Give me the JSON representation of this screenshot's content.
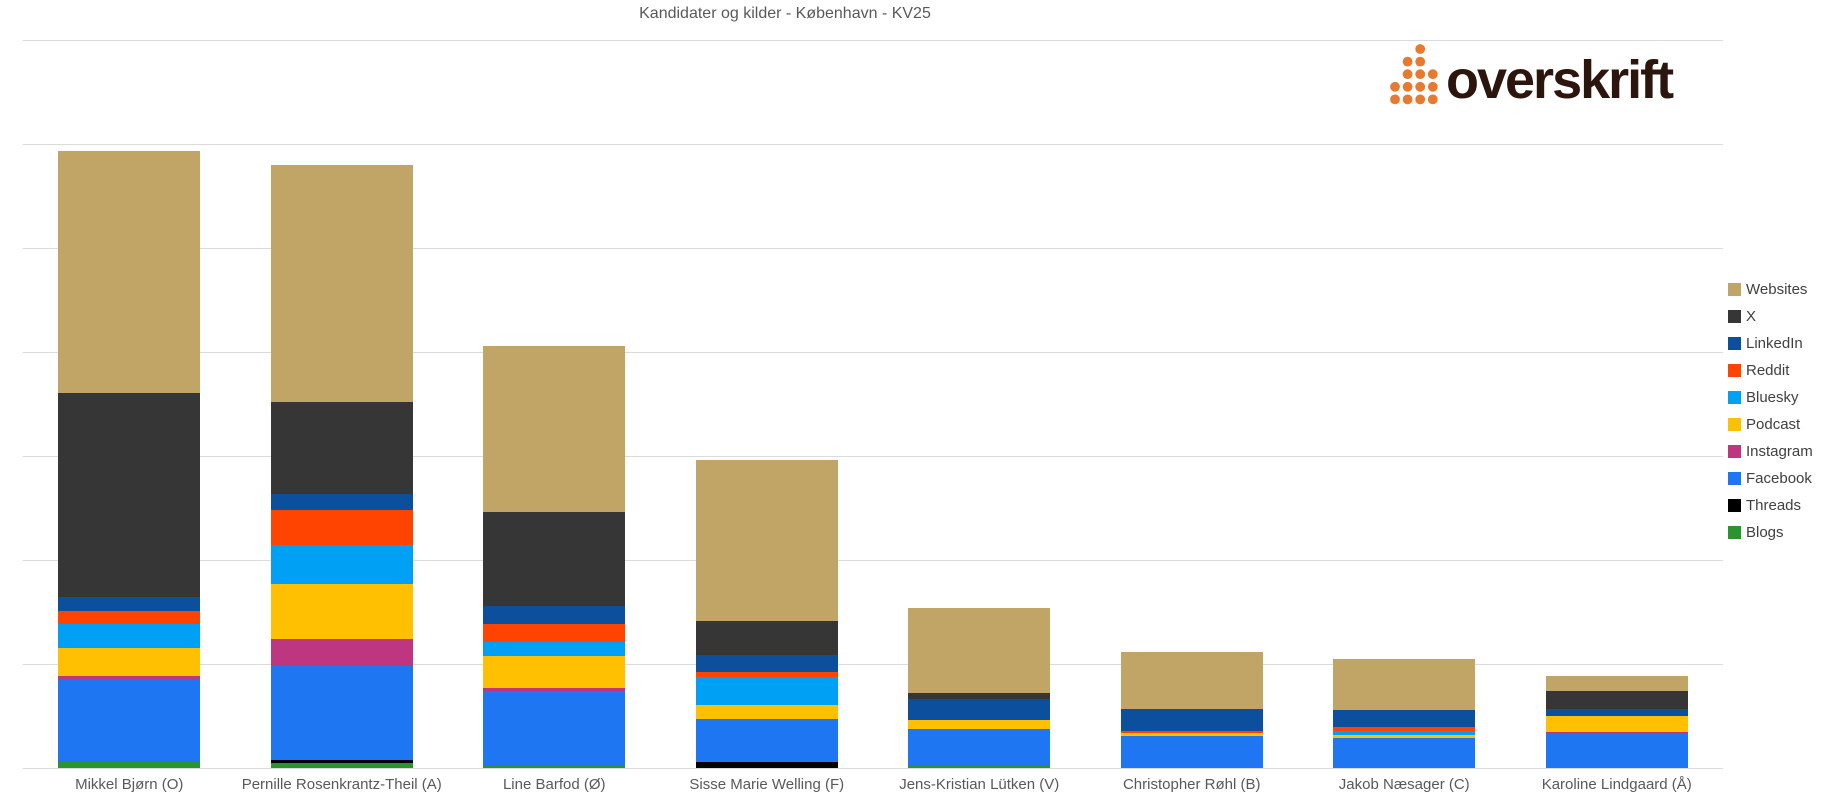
{
  "title": "Kandidater og kilder - København - KV25",
  "logo": {
    "text": "overskrift",
    "dot_color": "#E87A30",
    "text_color": "#2B150D",
    "dot_rows": [
      [
        0,
        0,
        1,
        0
      ],
      [
        0,
        1,
        1,
        0
      ],
      [
        0,
        1,
        1,
        1
      ],
      [
        1,
        1,
        1,
        1
      ],
      [
        1,
        1,
        1,
        1
      ]
    ]
  },
  "colors": {
    "gridline": "#DBDBDB",
    "axis_text": "#595959",
    "legend_text": "#404040",
    "background": "#FFFFFF"
  },
  "chart_data": {
    "type": "bar",
    "variant": "stacked-vertical",
    "title": "Kandidater og kilder - København - KV25",
    "xlabel": "",
    "ylabel": "",
    "y_tick_labels_visible": false,
    "ylim": [
      0,
      700
    ],
    "gridline_step": 100,
    "grid": true,
    "legend_position": "right",
    "categories": [
      "Mikkel Bjørn (O)",
      "Pernille Rosenkrantz-Theil (A)",
      "Line Barfod (Ø)",
      "Sisse Marie Welling (F)",
      "Jens-Kristian Lütken (V)",
      "Christopher Røhl (B)",
      "Jakob Næsager (C)",
      "Karoline Lindgaard (Å)"
    ],
    "series": [
      {
        "name": "Websites",
        "color": "#C0A566",
        "values": [
          232,
          228,
          160,
          155,
          82,
          55,
          49,
          14
        ]
      },
      {
        "name": "X",
        "color": "#363636",
        "values": [
          197,
          89,
          90,
          32,
          6,
          0,
          0,
          17
        ]
      },
      {
        "name": "LinkedIn",
        "color": "#0C4F9D",
        "values": [
          13,
          15,
          18,
          17,
          20,
          21,
          17,
          7
        ]
      },
      {
        "name": "Reddit",
        "color": "#FF4300",
        "values": [
          13,
          34,
          17,
          5,
          0,
          2,
          3,
          0
        ]
      },
      {
        "name": "Bluesky",
        "color": "#00A1F5",
        "values": [
          23,
          37,
          13,
          26,
          0,
          0,
          4,
          0
        ]
      },
      {
        "name": "Podcast",
        "color": "#FFC002",
        "values": [
          27,
          53,
          31,
          14,
          9,
          3,
          3,
          15
        ]
      },
      {
        "name": "Instagram",
        "color": "#BE3580",
        "values": [
          3,
          26,
          3,
          0,
          0,
          0,
          0,
          2
        ]
      },
      {
        "name": "Facebook",
        "color": "#1F76F3",
        "values": [
          78,
          90,
          71,
          41,
          34,
          31,
          29,
          33
        ]
      },
      {
        "name": "Threads",
        "color": "#000000",
        "values": [
          0,
          3,
          0,
          6,
          0,
          0,
          0,
          0
        ]
      },
      {
        "name": "Blogs",
        "color": "#2A9430",
        "values": [
          7,
          5,
          3,
          0,
          3,
          0,
          0,
          0
        ]
      }
    ],
    "stack_order_bottom_to_top": [
      "Blogs",
      "Threads",
      "Facebook",
      "Instagram",
      "Podcast",
      "Bluesky",
      "Reddit",
      "LinkedIn",
      "X",
      "Websites"
    ]
  }
}
